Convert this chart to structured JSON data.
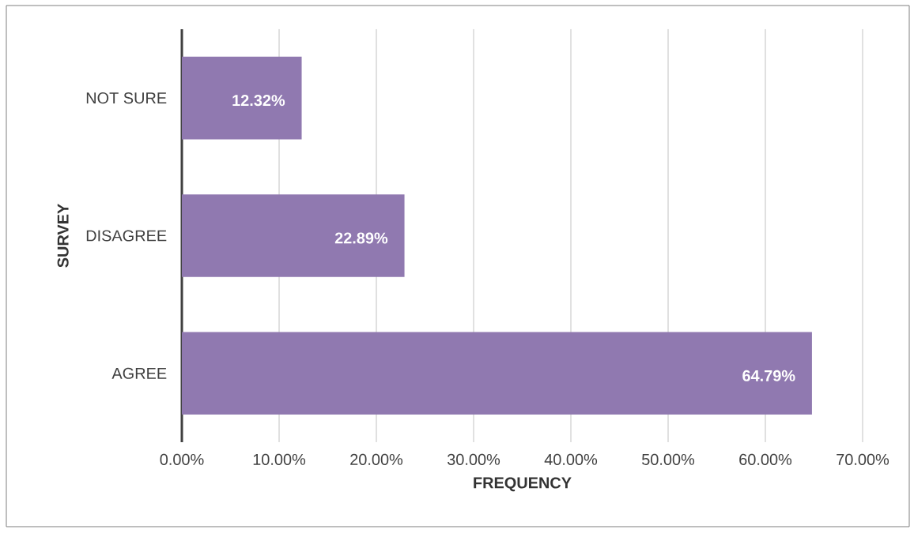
{
  "chart_data": {
    "type": "bar",
    "orientation": "horizontal",
    "xlabel": "FREQUENCY",
    "ylabel": "SURVEY",
    "categories": [
      "NOT SURE",
      "DISAGREE",
      "AGREE"
    ],
    "values": [
      12.32,
      22.89,
      64.79
    ],
    "value_labels": [
      "12.32%",
      "22.89%",
      "64.79%"
    ],
    "color": "#9079b0",
    "xlim": [
      0,
      70
    ],
    "xticks": [
      {
        "value": 0,
        "label": "0.00%"
      },
      {
        "value": 10,
        "label": "10.00%"
      },
      {
        "value": 20,
        "label": "20.00%"
      },
      {
        "value": 30,
        "label": "30.00%"
      },
      {
        "value": 40,
        "label": "40.00%"
      },
      {
        "value": 50,
        "label": "50.00%"
      },
      {
        "value": 60,
        "label": "60.00%"
      },
      {
        "value": 70,
        "label": "70.00%"
      }
    ],
    "grid": "x"
  }
}
